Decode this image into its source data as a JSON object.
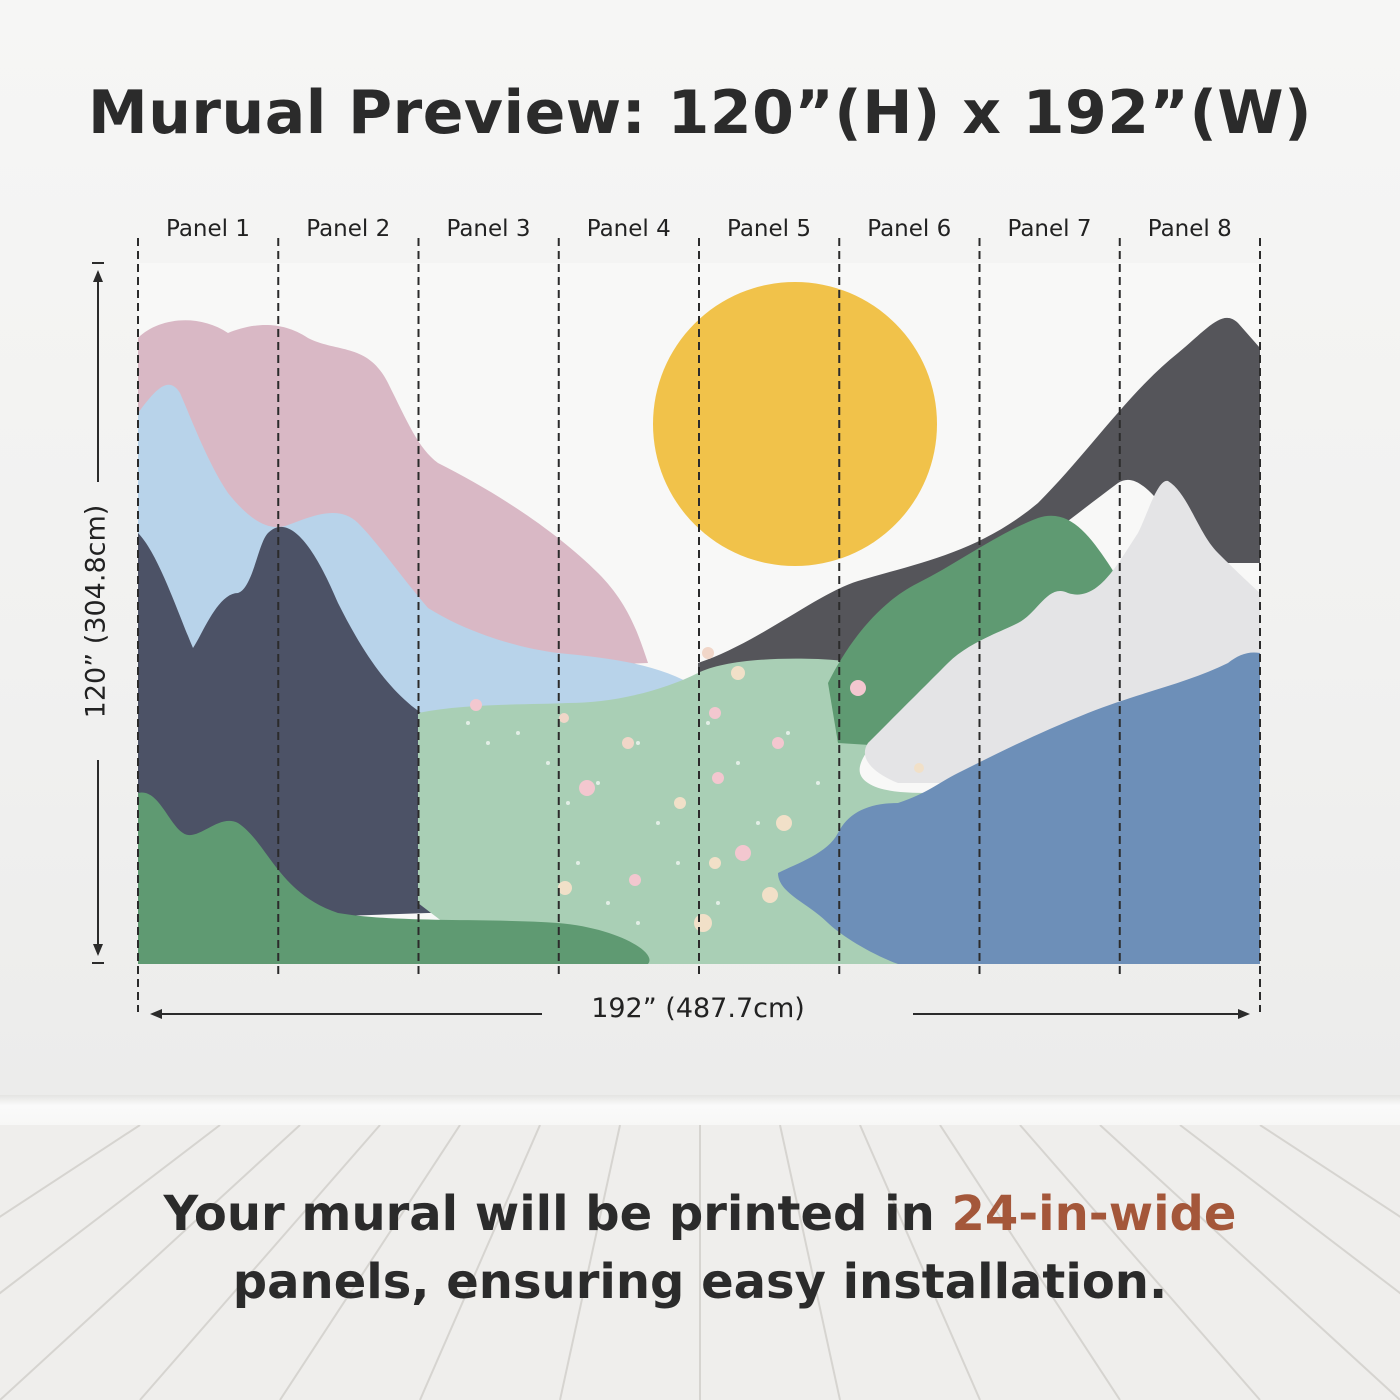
{
  "title": "Murual Preview: 120”(H) x 192”(W)",
  "panels": [
    "Panel 1",
    "Panel 2",
    "Panel 3",
    "Panel 4",
    "Panel 5",
    "Panel 6",
    "Panel 7",
    "Panel 8"
  ],
  "dimensions": {
    "width_label": "192” (487.7cm)",
    "height_label": "120” (304.8cm)"
  },
  "caption": {
    "line1_prefix": "Your mural will be printed in ",
    "line1_accent": "24-in-wide",
    "line2": "panels, ensuring easy installation."
  },
  "colors": {
    "sun": "#f1c24a",
    "pink_mountain": "#d9b8c5",
    "light_blue": "#b8d3ea",
    "navy": "#4c5266",
    "green": "#5f9a72",
    "meadow": "#a9cfb5",
    "charcoal": "#55555a",
    "grey_peak": "#e4e4e6",
    "blue_right": "#6d8fb8",
    "accent_text": "#a4573a"
  }
}
